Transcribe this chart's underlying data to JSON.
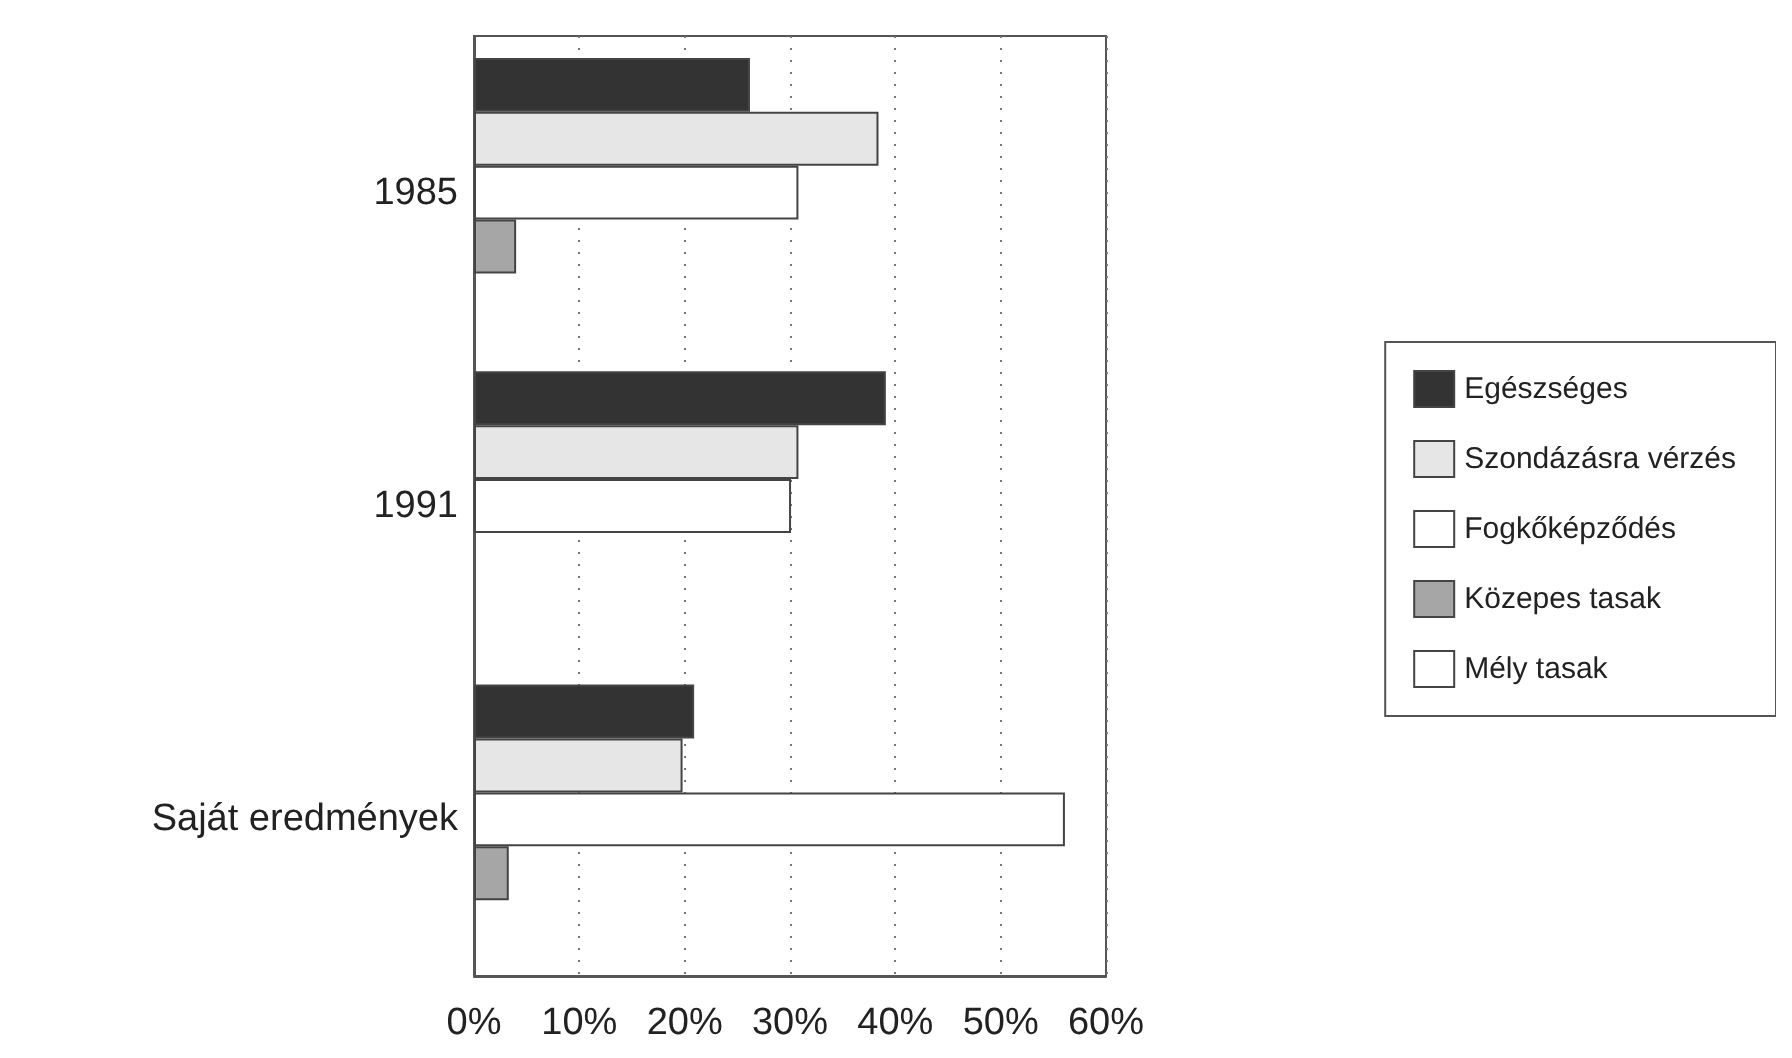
{
  "chart_data": {
    "type": "bar",
    "orientation": "horizontal",
    "categories": [
      "1985",
      "1991",
      "Saját eredmények"
    ],
    "series": [
      {
        "name": "Egészséges",
        "color": "#333333",
        "values": [
          26.2,
          39.1,
          20.9
        ]
      },
      {
        "name": "Szondázásra vérzés",
        "color": "#e6e6e6",
        "values": [
          38.4,
          30.8,
          19.8
        ]
      },
      {
        "name": "Fogkőképződés",
        "color": "#ffffff",
        "values": [
          30.8,
          30.1,
          56.1
        ]
      },
      {
        "name": "Közepes tasak",
        "color": "#a6a6a6",
        "values": [
          4.0,
          null,
          3.3
        ]
      },
      {
        "name": "Mély tasak",
        "color": "#ffffff",
        "values": [
          null,
          null,
          null
        ]
      }
    ],
    "xlim": [
      0,
      60
    ],
    "xticks": [
      {
        "value": 0,
        "label": "0%"
      },
      {
        "value": 10,
        "label": "10%"
      },
      {
        "value": 20,
        "label": "20%"
      },
      {
        "value": 30,
        "label": "30%"
      },
      {
        "value": 40,
        "label": "40%"
      },
      {
        "value": 50,
        "label": "50%"
      },
      {
        "value": 60,
        "label": "60%"
      }
    ],
    "grid": "x",
    "legend": "right"
  }
}
